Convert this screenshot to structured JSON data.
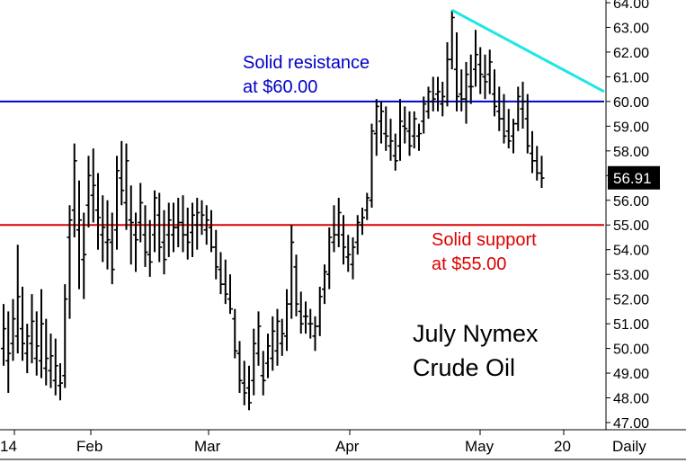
{
  "chart_data": {
    "type": "ohlc",
    "title": "July Nymex Crude Oil",
    "title_lines": [
      "July Nymex",
      "Crude Oil"
    ],
    "ylim": [
      47,
      64
    ],
    "y_ticks": [
      "47.00",
      "48.00",
      "49.00",
      "50.00",
      "51.00",
      "52.00",
      "53.00",
      "54.00",
      "55.00",
      "56.00",
      "57.00",
      "58.00",
      "59.00",
      "60.00",
      "61.00",
      "62.00",
      "63.00",
      "64.00"
    ],
    "x_ticks": [
      "14",
      "Feb",
      "Mar",
      "Apr",
      "May",
      "20"
    ],
    "timeframe_label": "Daily",
    "last_price": "56.91",
    "bars": [
      [
        50.0,
        51.8,
        49.3,
        50.8
      ],
      [
        49.5,
        51.5,
        48.2,
        49.8
      ],
      [
        50.2,
        52.0,
        49.5,
        51.2
      ],
      [
        50.5,
        54.2,
        49.8,
        52.1
      ],
      [
        50.8,
        52.5,
        49.5,
        50.2
      ],
      [
        49.8,
        51.0,
        49.0,
        50.5
      ],
      [
        50.2,
        52.2,
        49.4,
        51.1
      ],
      [
        49.6,
        51.5,
        48.9,
        50.1
      ],
      [
        49.5,
        52.4,
        48.8,
        51.0
      ],
      [
        49.2,
        51.2,
        48.5,
        49.6
      ],
      [
        49.1,
        50.6,
        48.4,
        49.7
      ],
      [
        48.7,
        50.4,
        48.1,
        49.3
      ],
      [
        48.5,
        49.4,
        47.9,
        48.6
      ],
      [
        48.9,
        52.6,
        48.4,
        52.0
      ],
      [
        54.5,
        55.8,
        51.2,
        55.2
      ],
      [
        55.6,
        58.3,
        54.5,
        57.6
      ],
      [
        54.8,
        56.8,
        52.4,
        55.2
      ],
      [
        53.6,
        55.5,
        52.0,
        53.8
      ],
      [
        55.8,
        57.8,
        54.9,
        57.0
      ],
      [
        56.2,
        58.1,
        55.1,
        56.6
      ],
      [
        55.6,
        57.1,
        54.0,
        55.3
      ],
      [
        54.6,
        56.2,
        53.5,
        54.9
      ],
      [
        54.3,
        56.0,
        53.2,
        54.4
      ],
      [
        54.3,
        55.5,
        52.6,
        53.2
      ],
      [
        54.8,
        57.8,
        54.0,
        57.2
      ],
      [
        56.9,
        58.4,
        55.8,
        56.4
      ],
      [
        55.9,
        58.3,
        54.8,
        57.6
      ],
      [
        55.2,
        56.6,
        53.4,
        55.1
      ],
      [
        54.6,
        55.5,
        53.1,
        54.4
      ],
      [
        55.1,
        56.7,
        54.3,
        55.9
      ],
      [
        54.6,
        55.8,
        53.3,
        53.9
      ],
      [
        53.8,
        55.2,
        52.9,
        53.5
      ],
      [
        54.6,
        56.4,
        53.9,
        56.1
      ],
      [
        55.4,
        56.3,
        53.5,
        54.1
      ],
      [
        54.3,
        55.6,
        53.0,
        53.6
      ],
      [
        54.6,
        55.9,
        53.7,
        55.2
      ],
      [
        54.6,
        55.9,
        53.9,
        54.9
      ],
      [
        54.9,
        56.1,
        54.1,
        55.1
      ],
      [
        55.1,
        56.2,
        53.9,
        54.6
      ],
      [
        54.6,
        55.7,
        53.6,
        54.3
      ],
      [
        54.7,
        55.9,
        53.7,
        55.4
      ],
      [
        55.0,
        56.1,
        54.0,
        55.5
      ],
      [
        55.0,
        56.0,
        54.6,
        55.4
      ],
      [
        54.8,
        55.8,
        54.2,
        55.2
      ],
      [
        54.9,
        55.6,
        53.9,
        54.1
      ],
      [
        54.1,
        54.8,
        52.8,
        53.3
      ],
      [
        53.2,
        53.9,
        52.2,
        52.6
      ],
      [
        52.6,
        53.6,
        51.8,
        52.2
      ],
      [
        52.0,
        53.0,
        51.4,
        51.6
      ],
      [
        51.2,
        51.6,
        49.6,
        49.9
      ],
      [
        49.8,
        50.3,
        48.2,
        48.7
      ],
      [
        48.6,
        49.5,
        47.7,
        48.2
      ],
      [
        48.4,
        49.3,
        47.5,
        47.8
      ],
      [
        48.7,
        50.8,
        48.1,
        50.2
      ],
      [
        49.8,
        51.5,
        49.3,
        50.9
      ],
      [
        48.9,
        49.9,
        48.1,
        48.7
      ],
      [
        49.4,
        50.6,
        48.8,
        50.1
      ],
      [
        49.6,
        51.3,
        49.1,
        50.7
      ],
      [
        49.9,
        51.6,
        49.3,
        51.1
      ],
      [
        50.2,
        51.2,
        49.7,
        50.6
      ],
      [
        50.5,
        52.4,
        49.9,
        51.8
      ],
      [
        51.8,
        55.0,
        51.2,
        54.3
      ],
      [
        53.3,
        53.8,
        51.3,
        51.8
      ],
      [
        51.5,
        52.3,
        50.6,
        51.0
      ],
      [
        51.3,
        51.9,
        50.6,
        51.3
      ],
      [
        51.0,
        51.6,
        50.4,
        51.0
      ],
      [
        50.5,
        51.3,
        49.9,
        50.9
      ],
      [
        50.9,
        52.5,
        50.5,
        52.1
      ],
      [
        52.4,
        53.4,
        51.8,
        53.1
      ],
      [
        53.0,
        54.9,
        52.4,
        54.5
      ],
      [
        54.3,
        55.8,
        53.9,
        54.6
      ],
      [
        54.6,
        56.1,
        54.1,
        55.5
      ],
      [
        54.6,
        55.4,
        53.4,
        54.1
      ],
      [
        53.7,
        54.6,
        53.1,
        53.8
      ],
      [
        53.4,
        54.5,
        52.8,
        54.1
      ],
      [
        54.3,
        55.4,
        53.8,
        55.1
      ],
      [
        55.0,
        55.7,
        54.6,
        55.3
      ],
      [
        55.6,
        56.3,
        55.2,
        56.1
      ],
      [
        56.0,
        59.1,
        55.7,
        58.8
      ],
      [
        58.7,
        60.1,
        57.8,
        59.8
      ],
      [
        59.2,
        60.0,
        58.3,
        59.6
      ],
      [
        58.7,
        59.8,
        58.0,
        58.6
      ],
      [
        58.2,
        59.3,
        57.6,
        58.4
      ],
      [
        57.8,
        58.7,
        57.2,
        57.6
      ],
      [
        58.2,
        60.1,
        57.6,
        59.2
      ],
      [
        59.0,
        59.8,
        58.3,
        58.9
      ],
      [
        58.8,
        59.6,
        57.8,
        58.2
      ],
      [
        58.6,
        59.6,
        58.1,
        59.3
      ],
      [
        58.6,
        59.1,
        58.0,
        58.7
      ],
      [
        59.2,
        60.2,
        58.7,
        59.9
      ],
      [
        59.6,
        60.6,
        59.3,
        60.4
      ],
      [
        60.0,
        61.0,
        59.6,
        60.1
      ],
      [
        60.3,
        61.0,
        59.6,
        60.4
      ],
      [
        59.9,
        60.8,
        59.4,
        60.2
      ],
      [
        60.0,
        62.4,
        59.8,
        61.7
      ],
      [
        61.7,
        63.7,
        61.3,
        63.4
      ],
      [
        61.3,
        62.8,
        59.6,
        60.2
      ],
      [
        60.3,
        61.3,
        59.6,
        60.1
      ],
      [
        60.1,
        61.6,
        59.1,
        61.1
      ],
      [
        60.6,
        61.9,
        59.9,
        60.6
      ],
      [
        61.3,
        62.9,
        60.6,
        61.9
      ],
      [
        61.5,
        62.2,
        60.3,
        61.1
      ],
      [
        61.0,
        61.9,
        60.1,
        60.8
      ],
      [
        61.1,
        62.1,
        60.3,
        61.6
      ],
      [
        60.3,
        61.3,
        59.4,
        59.8
      ],
      [
        59.6,
        60.6,
        58.8,
        59.3
      ],
      [
        59.3,
        60.3,
        58.3,
        58.6
      ],
      [
        58.8,
        59.7,
        58.1,
        58.4
      ],
      [
        58.6,
        59.3,
        57.9,
        59.1
      ],
      [
        59.1,
        60.6,
        58.8,
        60.2
      ],
      [
        59.7,
        60.8,
        58.9,
        60.0
      ],
      [
        59.3,
        60.3,
        57.9,
        58.2
      ],
      [
        57.9,
        58.8,
        57.1,
        57.6
      ],
      [
        57.6,
        58.2,
        56.8,
        57.1
      ],
      [
        57.1,
        57.8,
        56.5,
        56.9
      ]
    ],
    "annotations": {
      "resistance": {
        "lines": [
          "Solid resistance",
          "at $60.00"
        ],
        "level": 60.0,
        "color": "#0000c8"
      },
      "support": {
        "lines": [
          "Solid support",
          "at $55.00"
        ],
        "level": 55.0,
        "color": "#dc0000"
      },
      "trendline": {
        "from_price": 63.7,
        "to_price": 60.4,
        "color": "#1ee6e6"
      }
    }
  }
}
